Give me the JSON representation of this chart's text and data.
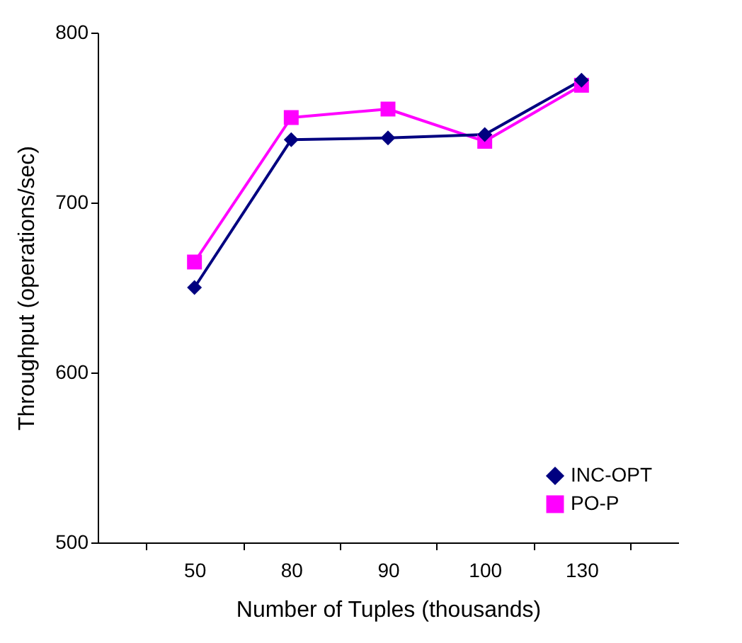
{
  "chart_data": {
    "type": "line",
    "xlabel": "Number of Tuples (thousands)",
    "ylabel": "Throughput (operations/sec)",
    "categories": [
      "50",
      "80",
      "90",
      "100",
      "130"
    ],
    "series": [
      {
        "name": "INC-OPT",
        "color": "#000080",
        "marker": "diamond",
        "values": [
          650,
          737,
          738,
          740,
          772
        ]
      },
      {
        "name": "PO-P",
        "color": "#ff00ff",
        "marker": "square",
        "values": [
          665,
          750,
          755,
          736,
          769
        ]
      }
    ],
    "ylim": [
      500,
      800
    ],
    "yticks": [
      500,
      600,
      700,
      800
    ],
    "grid": false,
    "legend": "bottom right",
    "line_style": "solid"
  }
}
